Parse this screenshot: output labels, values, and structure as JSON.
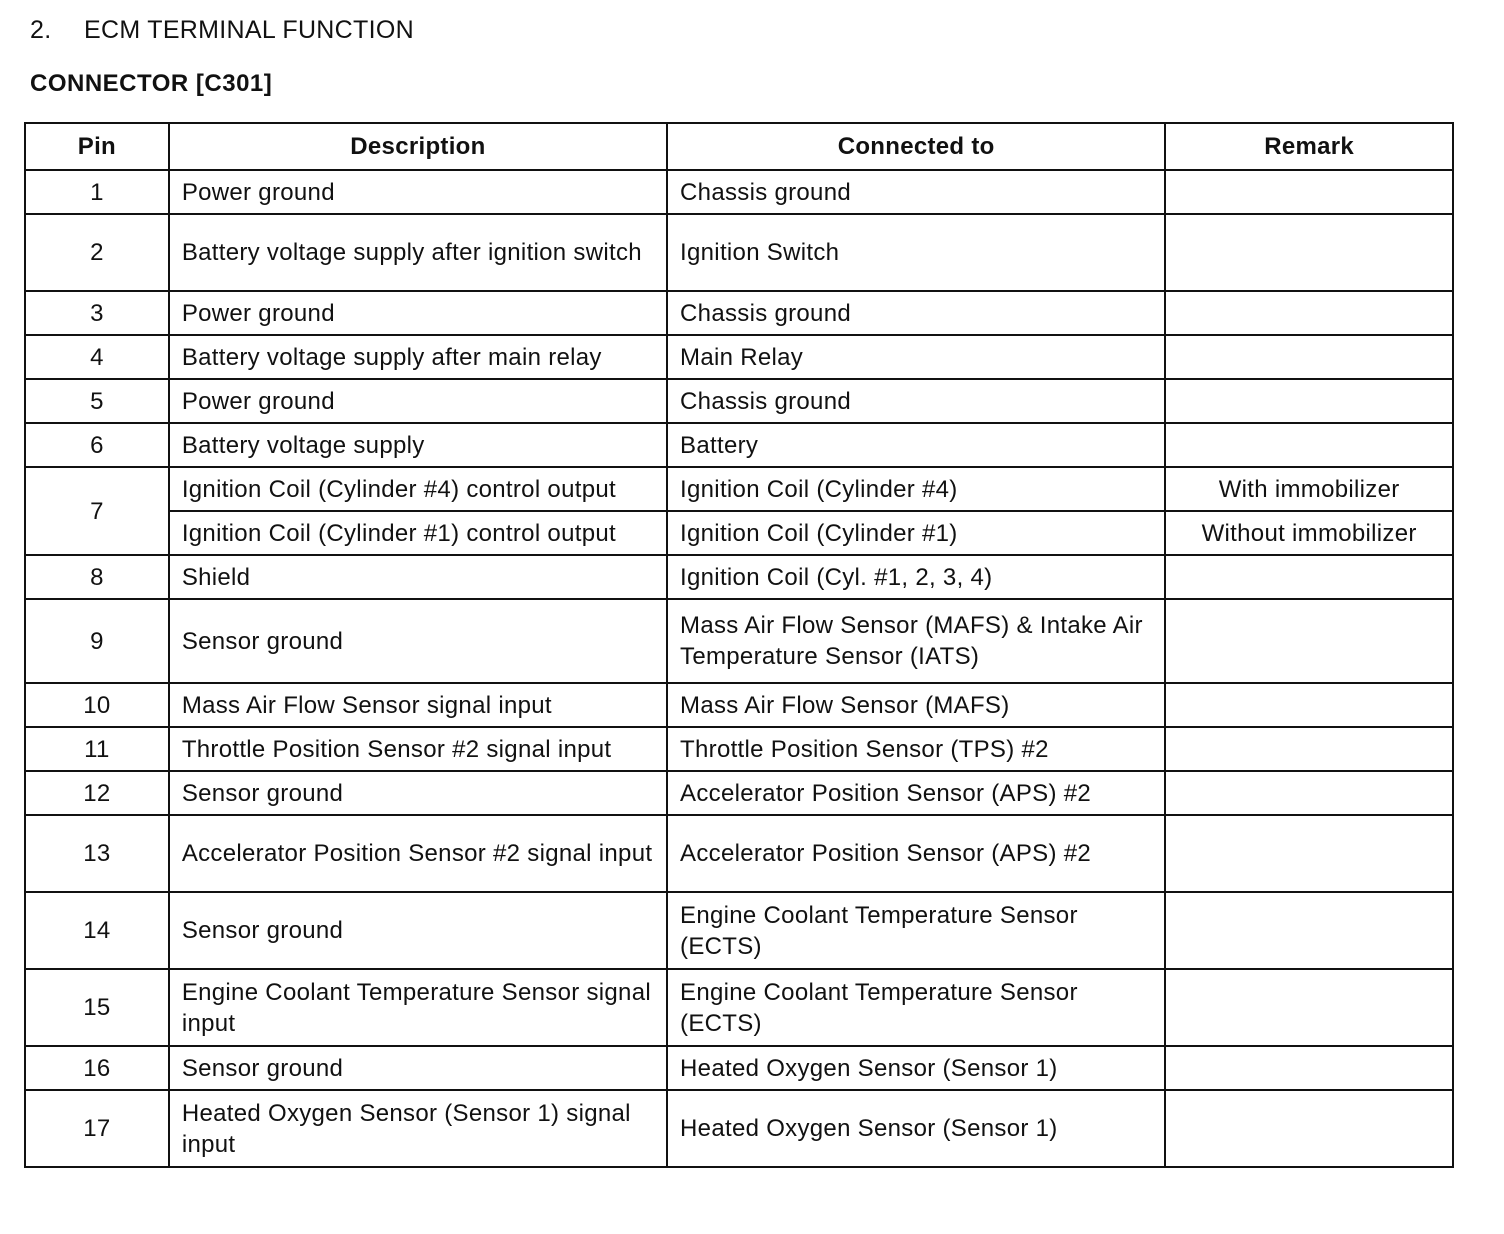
{
  "section": {
    "number": "2.",
    "title": "ECM TERMINAL FUNCTION"
  },
  "connector_title": "CONNECTOR [C301]",
  "table": {
    "headers": [
      "Pin",
      "Description",
      "Connected to",
      "Remark"
    ],
    "rows": [
      {
        "pin": "1",
        "description": "Power ground",
        "connected_to": "Chassis ground",
        "remark": ""
      },
      {
        "pin": "2",
        "description": "Battery voltage supply after ignition switch",
        "connected_to": "Ignition Switch",
        "remark": ""
      },
      {
        "pin": "3",
        "description": "Power ground",
        "connected_to": "Chassis ground",
        "remark": ""
      },
      {
        "pin": "4",
        "description": "Battery voltage supply after main relay",
        "connected_to": "Main Relay",
        "remark": ""
      },
      {
        "pin": "5",
        "description": "Power ground",
        "connected_to": "Chassis ground",
        "remark": ""
      },
      {
        "pin": "6",
        "description": "Battery voltage supply",
        "connected_to": "Battery",
        "remark": ""
      },
      {
        "pin": "7",
        "description": "Ignition Coil (Cylinder #4) control output",
        "connected_to": "Ignition Coil (Cylinder #4)",
        "remark": "With immobilizer",
        "alt": {
          "description": "Ignition Coil (Cylinder #1) control output",
          "connected_to": "Ignition Coil (Cylinder #1)",
          "remark": "Without immobilizer"
        }
      },
      {
        "pin": "8",
        "description": "Shield",
        "connected_to": "Ignition Coil (Cyl. #1, 2, 3, 4)",
        "remark": ""
      },
      {
        "pin": "9",
        "description": "Sensor ground",
        "connected_to": "Mass Air Flow Sensor (MAFS) & Intake Air Temperature Sensor (IATS)",
        "remark": ""
      },
      {
        "pin": "10",
        "description": "Mass Air Flow Sensor signal input",
        "connected_to": "Mass Air Flow Sensor (MAFS)",
        "remark": ""
      },
      {
        "pin": "11",
        "description": "Throttle Position Sensor #2 signal input",
        "connected_to": "Throttle Position Sensor (TPS) #2",
        "remark": ""
      },
      {
        "pin": "12",
        "description": "Sensor ground",
        "connected_to": "Accelerator Position Sensor (APS) #2",
        "remark": ""
      },
      {
        "pin": "13",
        "description": "Accelerator Position Sensor #2 signal input",
        "connected_to": "Accelerator Position Sensor (APS) #2",
        "remark": ""
      },
      {
        "pin": "14",
        "description": "Sensor ground",
        "connected_to": "Engine Coolant Temperature Sensor (ECTS)",
        "remark": ""
      },
      {
        "pin": "15",
        "description": "Engine Coolant Temperature Sensor signal input",
        "connected_to": "Engine Coolant Temperature Sensor (ECTS)",
        "remark": ""
      },
      {
        "pin": "16",
        "description": "Sensor ground",
        "connected_to": "Heated Oxygen Sensor (Sensor 1)",
        "remark": ""
      },
      {
        "pin": "17",
        "description": "Heated Oxygen Sensor (Sensor 1) signal input",
        "connected_to": "Heated Oxygen Sensor (Sensor 1)",
        "remark": ""
      }
    ]
  }
}
